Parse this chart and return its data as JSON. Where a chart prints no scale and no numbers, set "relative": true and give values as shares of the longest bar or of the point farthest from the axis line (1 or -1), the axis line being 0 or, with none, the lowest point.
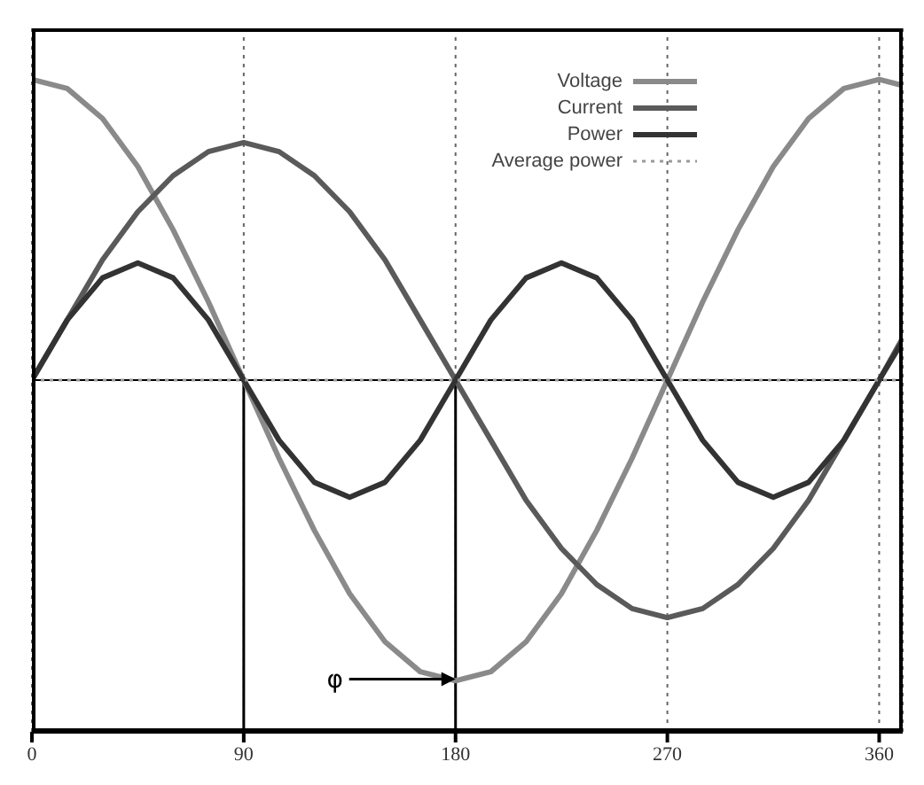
{
  "chart_data": {
    "type": "line",
    "relative": true,
    "x": [
      0,
      15,
      30,
      45,
      60,
      75,
      90,
      105,
      120,
      135,
      150,
      165,
      180,
      195,
      210,
      225,
      240,
      255,
      270,
      285,
      300,
      315,
      330,
      345,
      360,
      370
    ],
    "xlim": [
      0,
      370
    ],
    "xticks": [
      0,
      90,
      180,
      270,
      360
    ],
    "series": [
      {
        "name": "Voltage",
        "color": "#8a8a8a",
        "values": [
          1,
          0.97,
          0.87,
          0.71,
          0.5,
          0.26,
          0,
          -0.26,
          -0.5,
          -0.71,
          -0.87,
          -0.97,
          -1,
          -0.97,
          -0.87,
          -0.71,
          -0.5,
          -0.26,
          0,
          0.26,
          0.5,
          0.71,
          0.87,
          0.97,
          1,
          0.98
        ]
      },
      {
        "name": "Current",
        "color": "#5a5a5a",
        "values": [
          0,
          0.2,
          0.4,
          0.56,
          0.68,
          0.76,
          0.79,
          0.76,
          0.68,
          0.56,
          0.4,
          0.2,
          0,
          -0.2,
          -0.4,
          -0.56,
          -0.68,
          -0.76,
          -0.79,
          -0.76,
          -0.68,
          -0.56,
          -0.4,
          -0.2,
          0,
          0.14
        ]
      },
      {
        "name": "Power",
        "color": "#333333",
        "values": [
          0,
          0.2,
          0.34,
          0.39,
          0.34,
          0.2,
          0,
          -0.2,
          -0.34,
          -0.39,
          -0.34,
          -0.2,
          0,
          0.2,
          0.34,
          0.39,
          0.34,
          0.2,
          0,
          -0.2,
          -0.34,
          -0.39,
          -0.34,
          -0.2,
          0,
          0.13
        ]
      },
      {
        "name": "Average power",
        "color": "#9a9a9a",
        "line_style": "dotted",
        "values": [
          0,
          0,
          0,
          0,
          0,
          0,
          0,
          0,
          0,
          0,
          0,
          0,
          0,
          0,
          0,
          0,
          0,
          0,
          0,
          0,
          0,
          0,
          0,
          0,
          0,
          0
        ]
      }
    ],
    "ref_lines": [
      {
        "axis": "x",
        "value": 90,
        "color": "#000000"
      },
      {
        "axis": "x",
        "value": 180,
        "color": "#000000"
      }
    ],
    "annotations": [
      "φ"
    ],
    "grid": "x",
    "legend": "top right",
    "marker": "none"
  }
}
